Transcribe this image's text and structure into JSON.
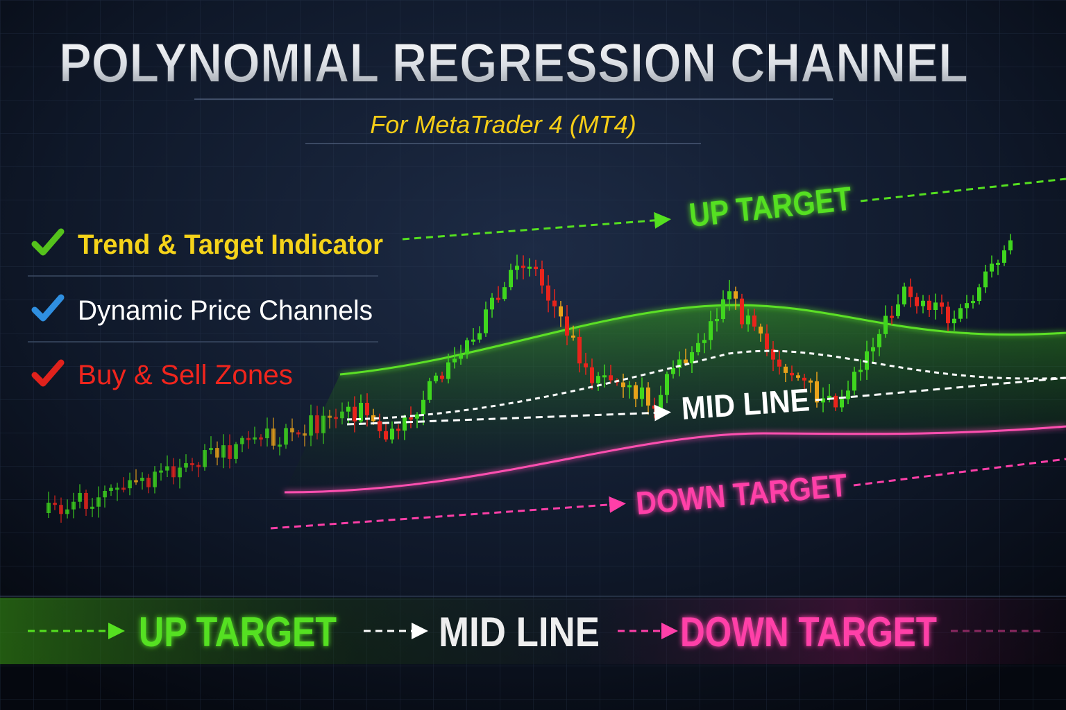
{
  "header": {
    "title": "POLYNOMIAL REGRESSION CHANNEL",
    "subtitle": "For MetaTrader 4 (MT4)"
  },
  "features": [
    {
      "text": "Trend & Target Indicator"
    },
    {
      "text": "Dynamic Price Channels"
    },
    {
      "text": "Buy & Sell Zones"
    }
  ],
  "chart_labels": {
    "up": "UP TARGET",
    "mid": "MID LINE",
    "down": "DOWN TARGET"
  },
  "legend": [
    "UP TARGET",
    "MID LINE",
    "DOWN TARGET"
  ]
}
